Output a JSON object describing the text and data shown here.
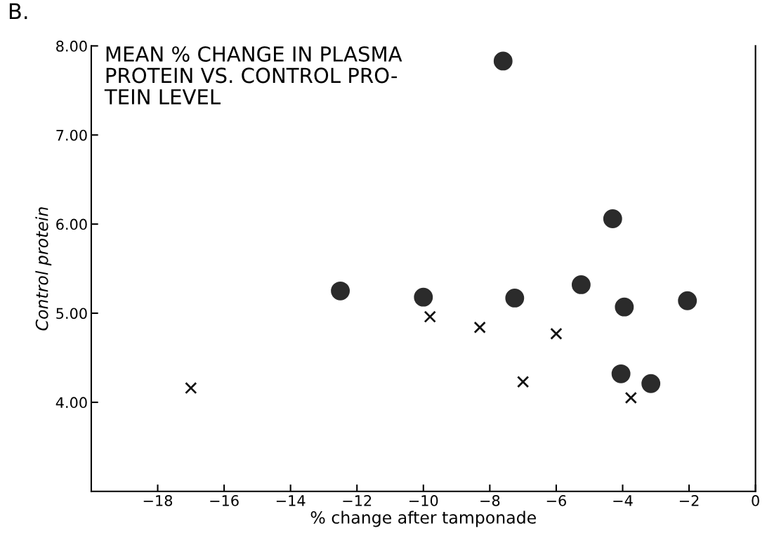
{
  "chart_data": {
    "type": "scatter",
    "title": "MEAN % CHANGE IN PLASMA\nPROTEIN VS. CONTROL PRO-\nTEIN LEVEL",
    "xlabel": "% change after tamponade",
    "ylabel": "Control protein",
    "annotations": [
      "B."
    ],
    "series": [
      {
        "color": "#2b2b2b",
        "marker": "circle",
        "x": [
          -7.6,
          -12.5,
          -10.0,
          -7.25,
          -5.25,
          -4.3,
          -3.95,
          -2.05,
          -4.05,
          -3.15
        ],
        "values": [
          7.83,
          5.25,
          5.18,
          5.17,
          5.32,
          6.06,
          5.07,
          5.14,
          4.32,
          4.21
        ]
      },
      {
        "color": "#111111",
        "marker": "cross",
        "x": [
          -17.0,
          -9.8,
          -8.3,
          -6.0,
          -7.0,
          -3.75
        ],
        "values": [
          4.16,
          4.96,
          4.84,
          4.77,
          4.23,
          4.05
        ]
      }
    ],
    "xlim": [
      -20,
      0
    ],
    "ylim": [
      3,
      8
    ],
    "xticks": [
      {
        "value": -18,
        "label": "−18"
      },
      {
        "value": -16,
        "label": "−16"
      },
      {
        "value": -14,
        "label": "−14"
      },
      {
        "value": -12,
        "label": "−12"
      },
      {
        "value": -10,
        "label": "−10"
      },
      {
        "value": -8,
        "label": "−8"
      },
      {
        "value": -6,
        "label": "−6"
      },
      {
        "value": -4,
        "label": "−4"
      },
      {
        "value": -2,
        "label": "−2"
      },
      0
    ],
    "yticks": [
      {
        "value": 4,
        "label": "4.00"
      },
      {
        "value": 5,
        "label": "5.00"
      },
      {
        "value": 6,
        "label": "6.00"
      },
      {
        "value": 7,
        "label": "7.00"
      },
      {
        "value": 8,
        "label": "8.00"
      }
    ],
    "grid": false,
    "legend": false
  }
}
